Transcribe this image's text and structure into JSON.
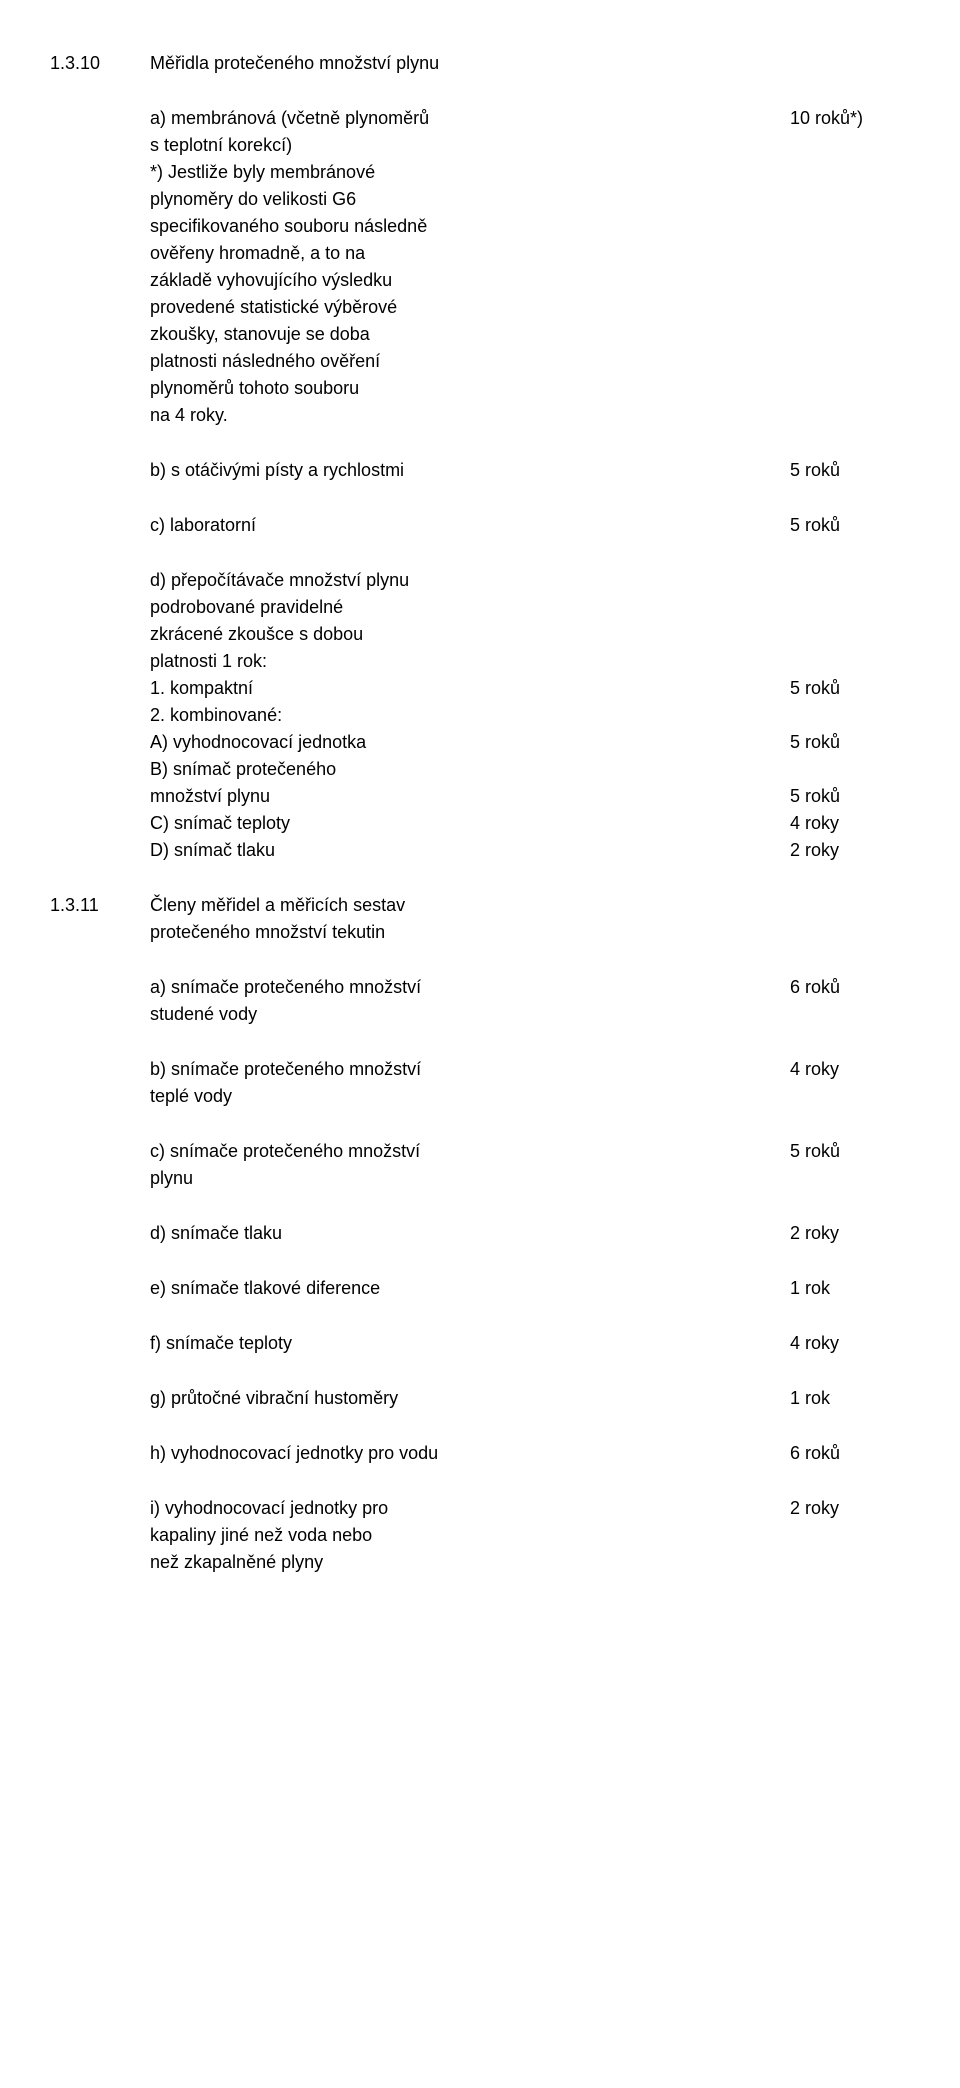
{
  "sections": [
    {
      "number": "1.3.10",
      "title": "Měřidla protečeného množství plynu",
      "items": [
        {
          "lines": [
            "a) membránová (včetně plynoměrů",
            "s teplotní korekcí)",
            "*) Jestliže byly membránové",
            "plynoměry do velikosti G6",
            "specifikovaného souboru následně",
            "ověřeny hromadně, a to na",
            "základě vyhovujícího výsledku",
            "provedené statistické výběrové",
            "zkoušky, stanovuje se doba",
            "platnosti následného ověření",
            "plynoměrů tohoto souboru",
            "na 4 roky."
          ],
          "value": "10 roků*)",
          "value_line": 0
        },
        {
          "lines": [
            "b) s otáčivými písty a rychlostmi"
          ],
          "value": "5 roků",
          "value_line": 0
        },
        {
          "lines": [
            "c) laboratorní"
          ],
          "value": "5 roků",
          "value_line": 0
        },
        {
          "type": "multi",
          "rows": [
            {
              "text": "d) přepočítávače množství plynu",
              "value": ""
            },
            {
              "text": "podrobované pravidelné",
              "value": ""
            },
            {
              "text": "zkrácené zkoušce s dobou",
              "value": ""
            },
            {
              "text": "platnosti 1 rok:",
              "value": ""
            },
            {
              "text": "1. kompaktní",
              "value": "5 roků"
            },
            {
              "text": "2. kombinované:",
              "value": ""
            },
            {
              "text": "A) vyhodnocovací jednotka",
              "value": "5 roků"
            },
            {
              "text": "B) snímač protečeného",
              "value": ""
            },
            {
              "text": "množství plynu",
              "value": "5 roků"
            },
            {
              "text": "C) snímač teploty",
              "value": "4 roky"
            },
            {
              "text": "D) snímač tlaku",
              "value": "2 roky"
            }
          ]
        }
      ]
    },
    {
      "number": "1.3.11",
      "title_lines": [
        "Členy měřidel a měřicích sestav",
        "protečeného množství tekutin"
      ],
      "items": [
        {
          "lines": [
            "a) snímače protečeného množství",
            "studené vody"
          ],
          "value": "6 roků",
          "value_line": 0
        },
        {
          "lines": [
            "b) snímače protečeného množství",
            "teplé vody"
          ],
          "value": "4 roky",
          "value_line": 0
        },
        {
          "lines": [
            "c) snímače protečeného množství",
            "plynu"
          ],
          "value": "5 roků",
          "value_line": 0
        },
        {
          "lines": [
            "d) snímače tlaku"
          ],
          "value": "2 roky",
          "value_line": 0
        },
        {
          "lines": [
            "e) snímače tlakové diference"
          ],
          "value": "1 rok",
          "value_line": 0
        },
        {
          "lines": [
            "f) snímače teploty"
          ],
          "value": "4 roky",
          "value_line": 0
        },
        {
          "lines": [
            "g) průtočné vibrační hustoměry"
          ],
          "value": "1 rok",
          "value_line": 0
        },
        {
          "lines": [
            "h) vyhodnocovací jednotky pro vodu"
          ],
          "value": "6 roků",
          "value_line": 0
        },
        {
          "lines": [
            "i) vyhodnocovací jednotky pro",
            "kapaliny jiné než voda nebo",
            "než zkapalněné plyny"
          ],
          "value": "2 roky",
          "value_line": 0
        }
      ]
    }
  ]
}
